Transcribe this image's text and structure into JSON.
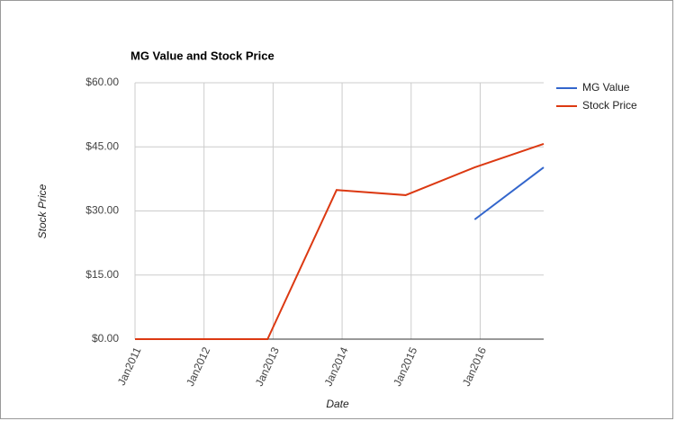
{
  "chart_data": {
    "type": "line",
    "title": "MG Value and Stock Price",
    "x_label": "Date",
    "y_label": "Stock Price",
    "x": [
      2011.0,
      2012.0,
      2012.92,
      2013.92,
      2014.92,
      2015.92,
      2016.92
    ],
    "series": [
      {
        "name": "MG Value",
        "color": "#3366cc",
        "values": [
          null,
          null,
          null,
          null,
          null,
          28.0,
          40.2
        ]
      },
      {
        "name": "Stock Price",
        "color": "#dc3912",
        "values": [
          0,
          0,
          0,
          34.9,
          33.7,
          40.2,
          45.7
        ]
      }
    ],
    "xlim": [
      2011.0,
      2016.92
    ],
    "xticks": [
      {
        "value": 2011,
        "label": "Jan2011"
      },
      {
        "value": 2012,
        "label": "Jan2012"
      },
      {
        "value": 2013,
        "label": "Jan2013"
      },
      {
        "value": 2014,
        "label": "Jan2014"
      },
      {
        "value": 2015,
        "label": "Jan2015"
      },
      {
        "value": 2016,
        "label": "Jan2016"
      }
    ],
    "ylim": [
      0,
      60
    ],
    "yticks": [
      {
        "value": 0,
        "label": "$0.00"
      },
      {
        "value": 15,
        "label": "$15.00"
      },
      {
        "value": 30,
        "label": "$30.00"
      },
      {
        "value": 45,
        "label": "$45.00"
      },
      {
        "value": 60,
        "label": "$60.00"
      }
    ],
    "grid": true,
    "legend": "right"
  }
}
